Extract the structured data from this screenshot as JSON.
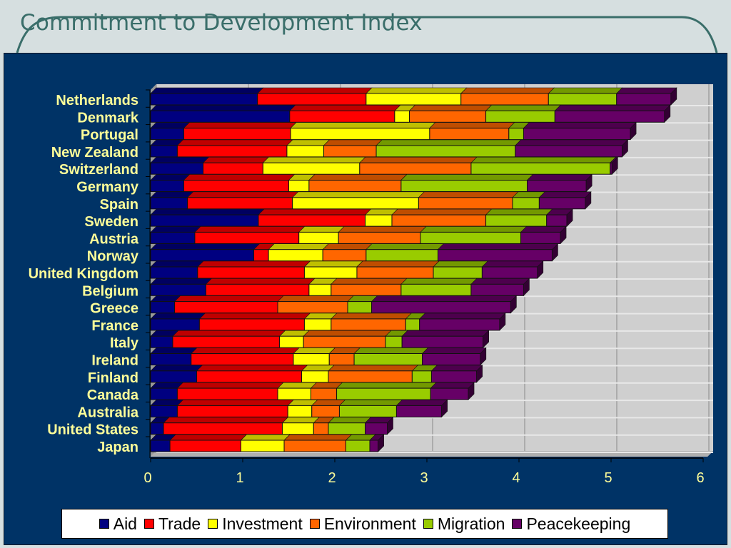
{
  "page": {
    "title": "Commitment to Development Index"
  },
  "chart_data": {
    "type": "bar",
    "orientation": "horizontal",
    "stacked": true,
    "title": "Commitment to Development Index",
    "xlabel": "",
    "ylabel": "",
    "xlim": [
      0,
      6
    ],
    "xticks": [
      "0",
      "1",
      "2",
      "3",
      "4",
      "5",
      "6"
    ],
    "grid": true,
    "legend_position": "bottom",
    "categories": [
      "Netherlands",
      "Denmark",
      "Portugal",
      "New Zealand",
      "Switzerland",
      "Germany",
      "Spain",
      "Sweden",
      "Austria",
      "Norway",
      "United Kingdom",
      "Belgium",
      "Greece",
      "France",
      "Italy",
      "Ireland",
      "Finland",
      "Canada",
      "Australia",
      "United States",
      "Japan"
    ],
    "series": [
      {
        "name": "Aid",
        "color": "#000080",
        "values": [
          1.16,
          1.51,
          0.36,
          0.29,
          0.57,
          0.36,
          0.4,
          1.17,
          0.48,
          1.12,
          0.51,
          0.6,
          0.26,
          0.53,
          0.24,
          0.44,
          0.5,
          0.29,
          0.29,
          0.14,
          0.21
        ]
      },
      {
        "name": "Trade",
        "color": "#ff0000",
        "values": [
          1.18,
          1.14,
          1.16,
          1.19,
          0.65,
          1.14,
          1.14,
          1.16,
          1.13,
          0.16,
          1.16,
          1.12,
          1.12,
          1.14,
          1.16,
          1.11,
          1.14,
          1.09,
          1.2,
          1.29,
          0.77
        ]
      },
      {
        "name": "Investment",
        "color": "#ffff00",
        "values": [
          1.03,
          0.16,
          1.51,
          0.4,
          1.05,
          0.22,
          1.37,
          0.29,
          0.43,
          0.59,
          0.57,
          0.24,
          0.0,
          0.29,
          0.26,
          0.39,
          0.29,
          0.36,
          0.26,
          0.34,
          0.47
        ]
      },
      {
        "name": "Environment",
        "color": "#ff6600",
        "values": [
          0.95,
          0.83,
          0.86,
          0.57,
          1.21,
          1.0,
          1.02,
          1.02,
          0.89,
          0.47,
          0.83,
          0.76,
          0.76,
          0.81,
          0.89,
          0.27,
          0.91,
          0.28,
          0.3,
          0.16,
          0.67
        ]
      },
      {
        "name": "Migration",
        "color": "#99cc00",
        "values": [
          0.74,
          0.75,
          0.16,
          1.51,
          1.51,
          1.37,
          0.29,
          0.66,
          1.09,
          0.78,
          0.53,
          0.76,
          0.26,
          0.15,
          0.18,
          0.74,
          0.21,
          1.02,
          0.62,
          0.4,
          0.26
        ]
      },
      {
        "name": "Peacekeeping",
        "color": "#660066",
        "values": [
          0.59,
          1.19,
          1.16,
          1.16,
          0.02,
          0.64,
          0.5,
          0.22,
          0.43,
          1.24,
          0.6,
          0.57,
          1.51,
          0.87,
          0.88,
          0.63,
          0.49,
          0.41,
          0.49,
          0.24,
          0.09
        ]
      }
    ]
  }
}
